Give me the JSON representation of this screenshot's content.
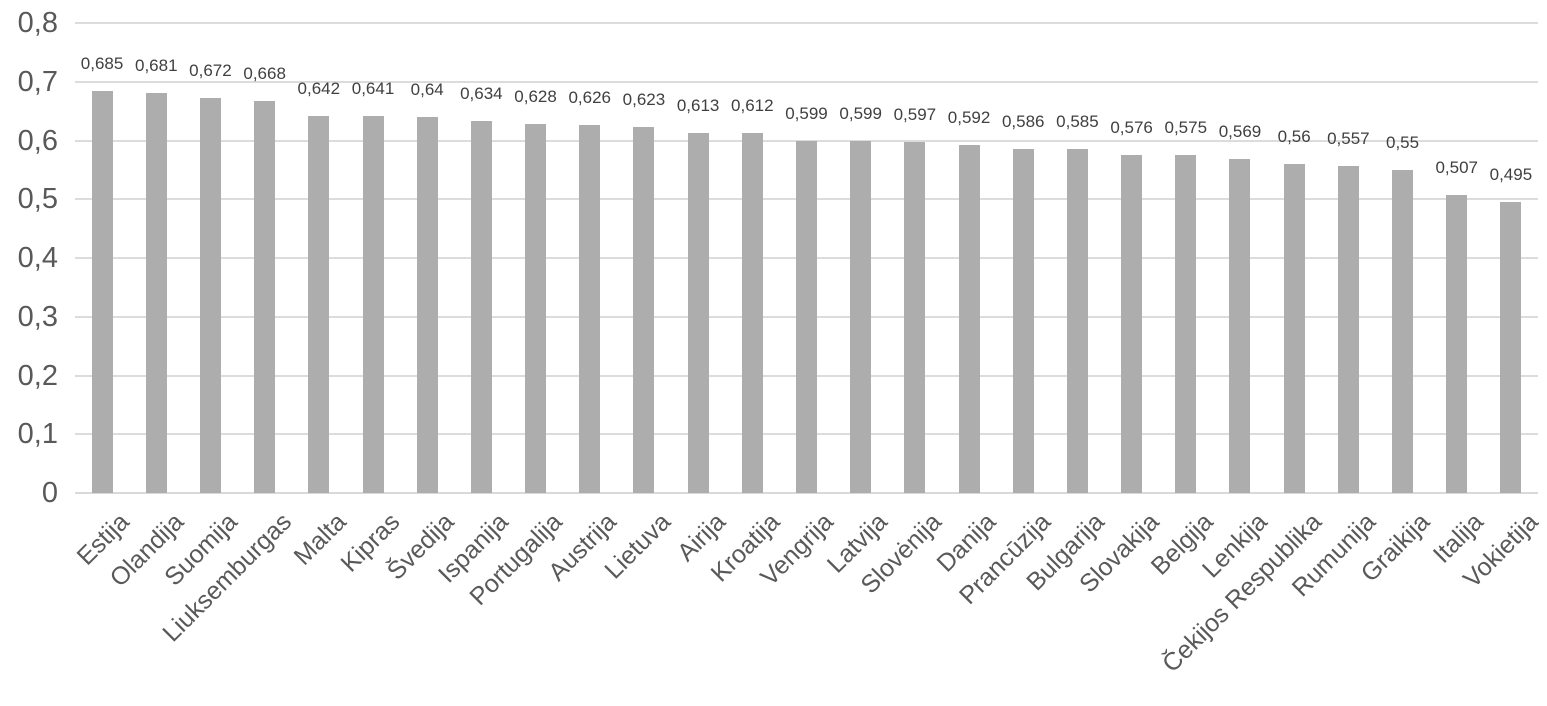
{
  "chart_data": {
    "type": "bar",
    "title": "",
    "xlabel": "",
    "ylabel": "",
    "categories": [
      "Estija",
      "Olandija",
      "Suomija",
      "Liuksemburgas",
      "Malta",
      "Kipras",
      "Švedija",
      "Ispanija",
      "Portugalija",
      "Austrija",
      "Lietuva",
      "Airija",
      "Kroatija",
      "Vengrija",
      "Latvija",
      "Slovėnija",
      "Danija",
      "Prancūzija",
      "Bulgarija",
      "Slovakija",
      "Belgija",
      "Lenkija",
      "Čekijos Respublika",
      "Rumunija",
      "Graikija",
      "Italija",
      "Vokietija"
    ],
    "values": [
      0.685,
      0.681,
      0.672,
      0.668,
      0.642,
      0.641,
      0.64,
      0.634,
      0.628,
      0.626,
      0.623,
      0.613,
      0.612,
      0.599,
      0.599,
      0.597,
      0.592,
      0.586,
      0.585,
      0.576,
      0.575,
      0.569,
      0.56,
      0.557,
      0.55,
      0.507,
      0.495
    ],
    "data_labels": [
      "0,685",
      "0,681",
      "0,672",
      "0,668",
      "0,642",
      "0,641",
      "0,64",
      "0,634",
      "0,628",
      "0,626",
      "0,623",
      "0,613",
      "0,612",
      "0,599",
      "0,599",
      "0,597",
      "0,592",
      "0,586",
      "0,585",
      "0,576",
      "0,575",
      "0,569",
      "0,56",
      "0,557",
      "0,55",
      "0,507",
      "0,495"
    ],
    "ylim": [
      0,
      0.8
    ],
    "ytick_step": 0.1,
    "ytick_labels": [
      "0",
      "0,1",
      "0,2",
      "0,3",
      "0,4",
      "0,5",
      "0,6",
      "0,7",
      "0,8"
    ],
    "grid": true,
    "legend": false,
    "decimal_separator": ",",
    "colors": {
      "bar": "#adadad",
      "gridline": "#dcdcdc",
      "axis_line": "#d9d9d9",
      "tick_text": "#595959",
      "data_label_text": "#404040"
    }
  }
}
